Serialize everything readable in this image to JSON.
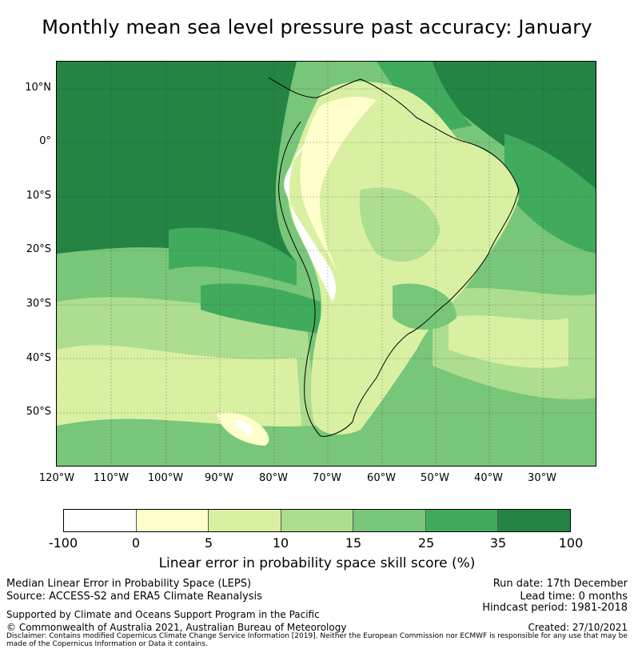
{
  "title": "Monthly mean sea level pressure past accuracy: January",
  "map": {
    "lat_ticks": [
      "10°N",
      "0°",
      "10°S",
      "20°S",
      "30°S",
      "40°S",
      "50°S"
    ],
    "lon_ticks": [
      "120°W",
      "110°W",
      "100°W",
      "90°W",
      "80°W",
      "70°W",
      "60°W",
      "50°W",
      "40°W",
      "30°W"
    ],
    "region": "South America and surrounding oceans"
  },
  "colorbar": {
    "segments": [
      {
        "from": "-100",
        "to": "0",
        "color": "#ffffff"
      },
      {
        "from": "0",
        "to": "5",
        "color": "#ffffcc"
      },
      {
        "from": "5",
        "to": "10",
        "color": "#d9f0a3"
      },
      {
        "from": "10",
        "to": "15",
        "color": "#addd8e"
      },
      {
        "from": "15",
        "to": "25",
        "color": "#78c679"
      },
      {
        "from": "25",
        "to": "35",
        "color": "#41ab5d"
      },
      {
        "from": "35",
        "to": "100",
        "color": "#238443"
      }
    ],
    "ticks": [
      "-100",
      "0",
      "5",
      "10",
      "15",
      "25",
      "35",
      "100"
    ],
    "label": "Linear error in probability space skill score (%)"
  },
  "footer": {
    "left_line1": "Median Linear Error in Probability Space (LEPS)",
    "left_line2": "Source: ACCESS-S2 and ERA5 Climate Reanalysis",
    "right_line1": "Run date: 17th December",
    "right_line2": "Lead time: 0 months",
    "right_line3": "Hindcast period: 1981-2018",
    "support": "Supported by Climate and Oceans Support Program in the Pacific",
    "copyright": "© Commonwealth of Australia 2021, Australian Bureau of Meteorology",
    "created": "Created: 27/10/2021",
    "disclaimer": "Disclaimer: Contains modified Copernicus Climate Change Service Information [2019]. Neither the European Commission nor ECMWF is responsible for any use that may be made of the Copernicus Information or Data it contains."
  }
}
